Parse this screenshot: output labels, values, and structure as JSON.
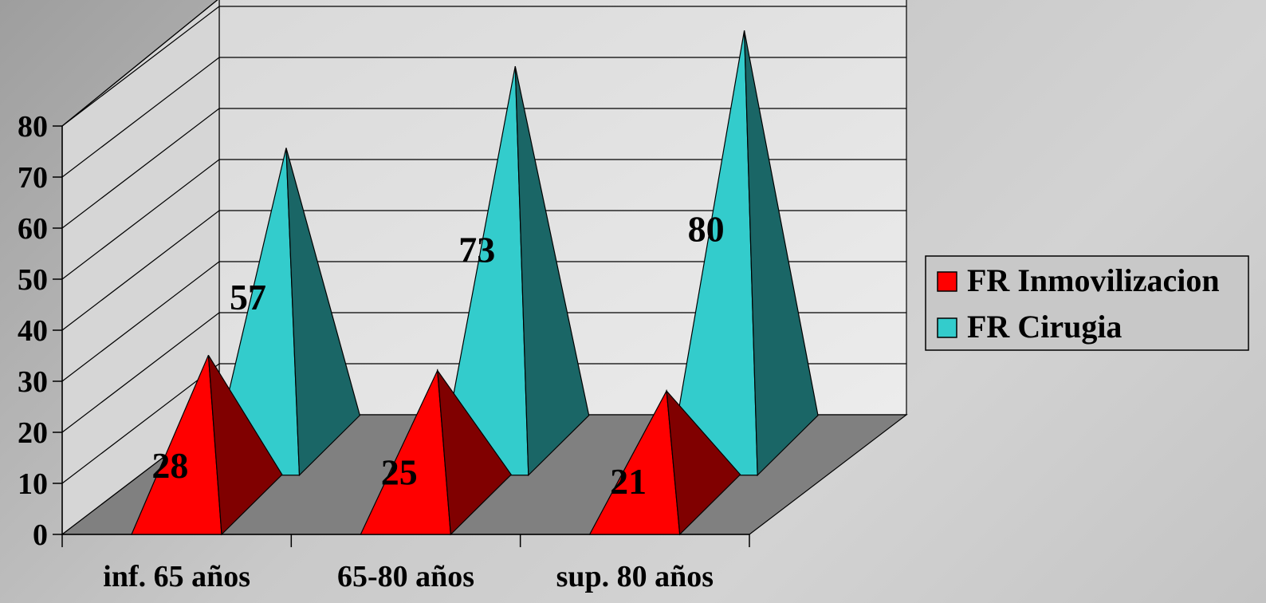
{
  "chart_data": {
    "type": "bar",
    "style": "3d-pyramid",
    "categories": [
      "inf. 65 años",
      "65-80 años",
      "sup. 80 años"
    ],
    "series": [
      {
        "name": "FR Inmovilizacion",
        "values": [
          28,
          25,
          21
        ],
        "color": "#ff0000",
        "shade": "#800000"
      },
      {
        "name": "FR Cirugia",
        "values": [
          57,
          73,
          80
        ],
        "color": "#33cccc",
        "shade": "#1a6666"
      }
    ],
    "yticks": [
      "0",
      "10",
      "20",
      "30",
      "40",
      "50",
      "60",
      "70",
      "80"
    ],
    "ylim": [
      0,
      80
    ],
    "grid": true,
    "data_labels": true,
    "legend": "right",
    "colors": {
      "floor": "#808080",
      "back_wall": "#e3e3e3",
      "side_wall": "#d6d6d6",
      "axis": "#000000"
    }
  }
}
